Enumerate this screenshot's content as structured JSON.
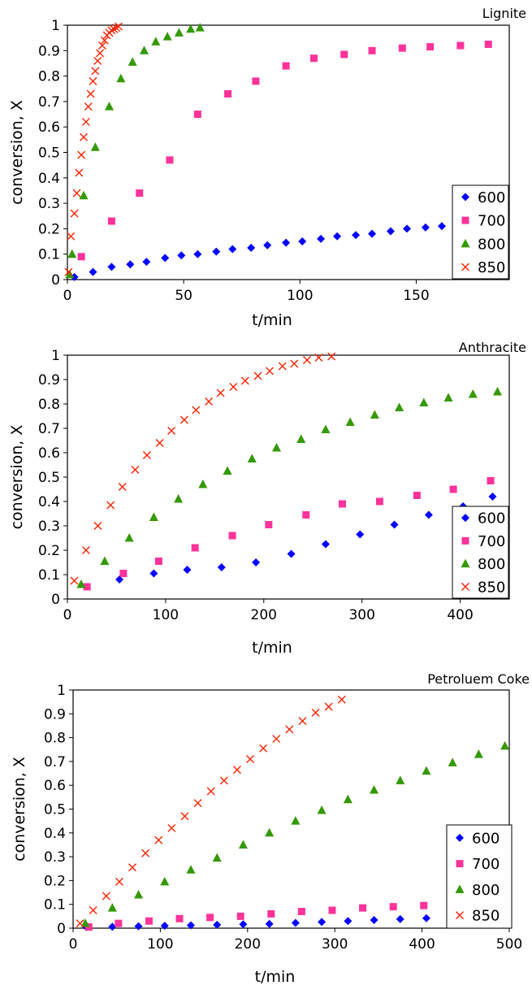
{
  "figure": {
    "background": "#ffffff"
  },
  "series_styles": [
    {
      "name": "600",
      "marker": "diamond",
      "color": "#0000ff"
    },
    {
      "name": "700",
      "marker": "square",
      "color": "#ff3399"
    },
    {
      "name": "800",
      "marker": "triangle",
      "color": "#339900"
    },
    {
      "name": "850",
      "marker": "x",
      "color": "#ff2200"
    }
  ],
  "chart_data": [
    {
      "type": "scatter",
      "title": "Lignite",
      "xlabel": "t/min",
      "ylabel": "conversion, X",
      "xlim": [
        0,
        190
      ],
      "ylim": [
        0,
        1
      ],
      "xticks": [
        0,
        50,
        100,
        150
      ],
      "yticks": [
        0,
        0.1,
        0.2,
        0.3,
        0.4,
        0.5,
        0.6,
        0.7,
        0.8,
        0.9,
        1
      ],
      "legend": "right-lower",
      "series": [
        {
          "name": "600",
          "x": [
            3,
            11,
            19,
            27,
            34,
            42,
            49,
            56,
            64,
            71,
            79,
            86,
            94,
            101,
            109,
            116,
            124,
            131,
            139,
            146,
            154,
            161
          ],
          "y": [
            0.01,
            0.03,
            0.05,
            0.06,
            0.07,
            0.085,
            0.095,
            0.1,
            0.11,
            0.12,
            0.125,
            0.135,
            0.145,
            0.15,
            0.16,
            0.17,
            0.175,
            0.18,
            0.19,
            0.2,
            0.205,
            0.21
          ]
        },
        {
          "name": "700",
          "x": [
            6,
            19,
            31,
            44,
            56,
            69,
            81,
            94,
            106,
            119,
            131,
            144,
            156,
            169,
            181
          ],
          "y": [
            0.09,
            0.23,
            0.34,
            0.47,
            0.65,
            0.73,
            0.78,
            0.84,
            0.87,
            0.885,
            0.9,
            0.91,
            0.915,
            0.92,
            0.925
          ]
        },
        {
          "name": "800",
          "x": [
            1,
            2,
            7,
            12,
            18,
            23,
            28,
            33,
            38,
            43,
            48,
            53,
            57
          ],
          "y": [
            0.02,
            0.1,
            0.33,
            0.52,
            0.68,
            0.79,
            0.855,
            0.9,
            0.935,
            0.955,
            0.97,
            0.985,
            0.99
          ]
        },
        {
          "name": "850",
          "x": [
            0.5,
            1.5,
            3,
            4,
            5,
            6,
            7,
            8,
            9,
            10,
            11,
            12,
            13,
            14,
            15,
            16,
            17,
            18,
            19,
            20,
            21,
            22
          ],
          "y": [
            0.03,
            0.17,
            0.26,
            0.34,
            0.42,
            0.49,
            0.56,
            0.62,
            0.68,
            0.73,
            0.78,
            0.82,
            0.86,
            0.89,
            0.92,
            0.94,
            0.96,
            0.97,
            0.98,
            0.985,
            0.99,
            0.995
          ]
        }
      ]
    },
    {
      "type": "scatter",
      "title": "Anthracite",
      "xlabel": "t/min",
      "ylabel": "conversion, X",
      "xlim": [
        0,
        450
      ],
      "ylim": [
        0,
        1
      ],
      "xticks": [
        0,
        100,
        200,
        300,
        400
      ],
      "yticks": [
        0,
        0.1,
        0.2,
        0.3,
        0.4,
        0.5,
        0.6,
        0.7,
        0.8,
        0.9,
        1
      ],
      "legend": "right-lower",
      "series": [
        {
          "name": "600",
          "x": [
            53,
            88,
            122,
            157,
            192,
            228,
            263,
            298,
            333,
            368,
            403,
            433
          ],
          "y": [
            0.08,
            0.105,
            0.12,
            0.13,
            0.15,
            0.185,
            0.225,
            0.265,
            0.305,
            0.345,
            0.38,
            0.42
          ]
        },
        {
          "name": "700",
          "x": [
            20,
            57,
            93,
            130,
            168,
            205,
            243,
            280,
            318,
            356,
            393,
            431
          ],
          "y": [
            0.05,
            0.105,
            0.155,
            0.21,
            0.26,
            0.305,
            0.345,
            0.39,
            0.4,
            0.425,
            0.45,
            0.485
          ]
        },
        {
          "name": "800",
          "x": [
            14,
            38,
            63,
            88,
            113,
            138,
            163,
            188,
            213,
            238,
            263,
            288,
            313,
            338,
            363,
            388,
            413,
            438
          ],
          "y": [
            0.06,
            0.155,
            0.25,
            0.335,
            0.41,
            0.47,
            0.525,
            0.575,
            0.62,
            0.655,
            0.695,
            0.725,
            0.755,
            0.785,
            0.805,
            0.825,
            0.84,
            0.85
          ]
        },
        {
          "name": "850",
          "x": [
            7,
            19,
            31,
            44,
            56,
            69,
            81,
            94,
            106,
            119,
            131,
            144,
            156,
            169,
            181,
            194,
            206,
            219,
            231,
            244,
            256,
            269
          ],
          "y": [
            0.075,
            0.2,
            0.3,
            0.385,
            0.46,
            0.53,
            0.59,
            0.64,
            0.69,
            0.735,
            0.775,
            0.81,
            0.845,
            0.87,
            0.895,
            0.915,
            0.935,
            0.955,
            0.965,
            0.98,
            0.99,
            0.995
          ]
        }
      ]
    },
    {
      "type": "scatter",
      "title": "Petroluem Coke",
      "xlabel": "t/min",
      "ylabel": "conversion, X",
      "xlim": [
        0,
        500
      ],
      "ylim": [
        0,
        1
      ],
      "xticks": [
        0,
        100,
        200,
        300,
        400,
        500
      ],
      "yticks": [
        0,
        0.1,
        0.2,
        0.3,
        0.4,
        0.5,
        0.6,
        0.7,
        0.8,
        0.9,
        1
      ],
      "legend": "right-lower",
      "series": [
        {
          "name": "600",
          "x": [
            15,
            45,
            75,
            105,
            135,
            165,
            195,
            225,
            255,
            285,
            315,
            345,
            375,
            405,
            435,
            465,
            495
          ],
          "y": [
            0.005,
            0.006,
            0.008,
            0.01,
            0.012,
            0.014,
            0.016,
            0.018,
            0.022,
            0.026,
            0.03,
            0.034,
            0.038,
            0.042,
            0.046,
            0.05,
            0.052
          ]
        },
        {
          "name": "700",
          "x": [
            18,
            52,
            87,
            122,
            157,
            192,
            227,
            262,
            297,
            332,
            367,
            402,
            437,
            472
          ],
          "y": [
            0.005,
            0.02,
            0.03,
            0.04,
            0.045,
            0.05,
            0.06,
            0.07,
            0.075,
            0.085,
            0.09,
            0.095,
            0.1,
            0.11
          ]
        },
        {
          "name": "800",
          "x": [
            14,
            45,
            75,
            105,
            135,
            165,
            195,
            225,
            255,
            285,
            315,
            345,
            375,
            405,
            435,
            465,
            495
          ],
          "y": [
            0.02,
            0.085,
            0.14,
            0.195,
            0.245,
            0.295,
            0.35,
            0.4,
            0.45,
            0.495,
            0.54,
            0.58,
            0.62,
            0.66,
            0.695,
            0.73,
            0.765
          ]
        },
        {
          "name": "850",
          "x": [
            8,
            23,
            38,
            53,
            68,
            83,
            98,
            113,
            128,
            143,
            158,
            173,
            188,
            203,
            218,
            233,
            248,
            263,
            278,
            293,
            308
          ],
          "y": [
            0.02,
            0.075,
            0.135,
            0.195,
            0.255,
            0.315,
            0.37,
            0.42,
            0.47,
            0.525,
            0.575,
            0.62,
            0.665,
            0.71,
            0.755,
            0.795,
            0.835,
            0.87,
            0.905,
            0.93,
            0.96
          ]
        }
      ]
    }
  ]
}
